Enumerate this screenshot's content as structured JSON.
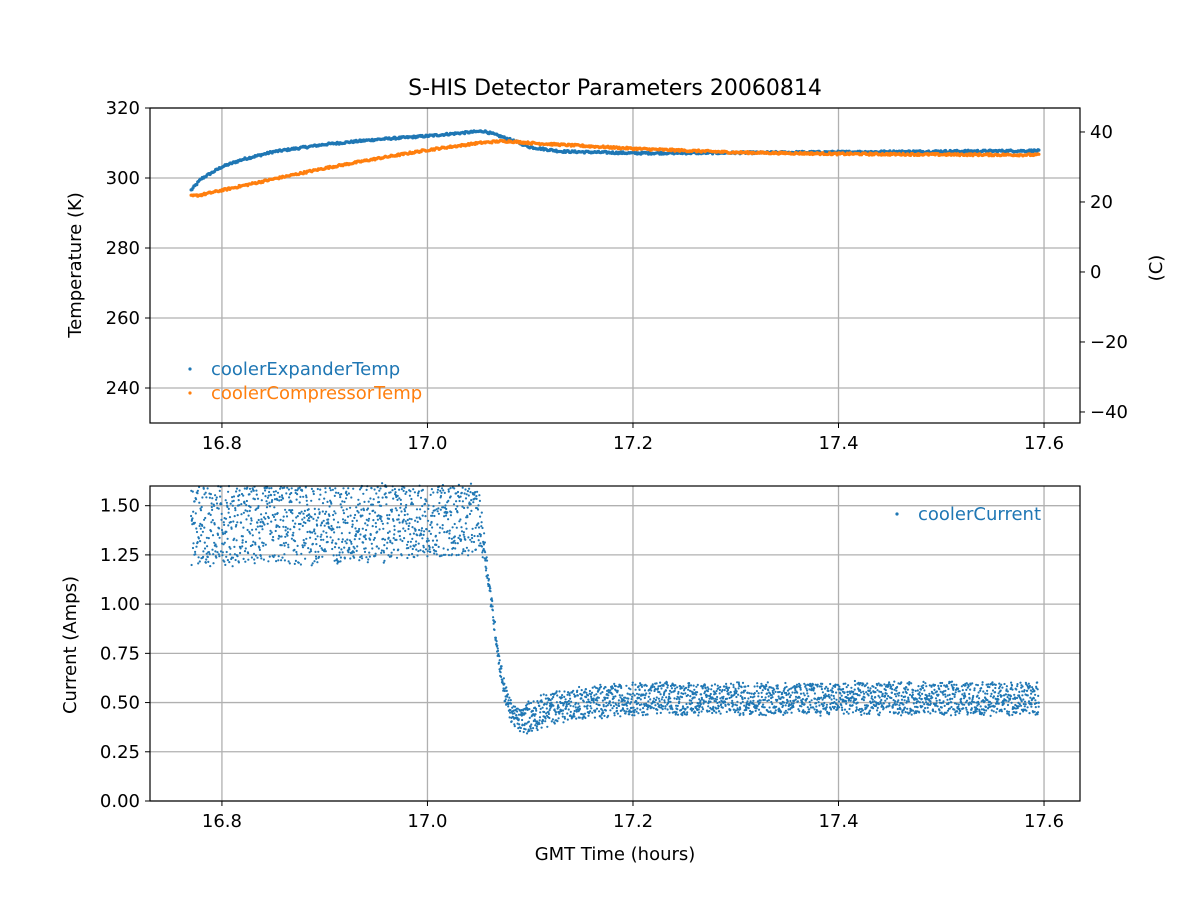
{
  "figure": {
    "title": "S-HIS Detector Parameters 20060814"
  },
  "colors": {
    "blue": "#1f77b4",
    "orange": "#ff7f0e",
    "grid": "#b0b0b0"
  },
  "chart_data": [
    {
      "type": "scatter",
      "title": "S-HIS Detector Parameters 20060814",
      "xlabel": "",
      "ylabel": "Temperature (K)",
      "y2label": "(C)",
      "xlim": [
        16.73,
        17.635
      ],
      "ylim": [
        230,
        320
      ],
      "y2lim": [
        -43.15,
        46.85
      ],
      "xticks": [
        "16.8",
        "17.0",
        "17.2",
        "17.4",
        "17.6"
      ],
      "yticks": [
        "240",
        "260",
        "280",
        "300",
        "320"
      ],
      "y2ticks": [
        "−40",
        "−20",
        "0",
        "20",
        "40"
      ],
      "grid": true,
      "legend_position": "lower-left",
      "series": [
        {
          "name": "coolerExpanderTemp",
          "color": "#1f77b4",
          "x": [
            16.77,
            16.78,
            16.8,
            16.82,
            16.85,
            16.9,
            16.95,
            17.0,
            17.03,
            17.055,
            17.07,
            17.085,
            17.1,
            17.13,
            17.2,
            17.3,
            17.4,
            17.5,
            17.595
          ],
          "y": [
            296.5,
            299.8,
            303.2,
            305.3,
            307.5,
            309.6,
            311.0,
            312.0,
            312.8,
            313.4,
            312.0,
            310.5,
            308.8,
            307.6,
            307.1,
            307.2,
            307.4,
            307.6,
            307.8
          ]
        },
        {
          "name": "coolerCompressorTemp",
          "color": "#ff7f0e",
          "x": [
            16.77,
            16.78,
            16.8,
            16.85,
            16.9,
            16.95,
            17.0,
            17.05,
            17.07,
            17.08,
            17.1,
            17.2,
            17.3,
            17.4,
            17.5,
            17.595
          ],
          "y": [
            294.8,
            295.2,
            296.5,
            299.7,
            302.8,
            305.5,
            308.0,
            310.0,
            310.5,
            310.5,
            310.0,
            308.4,
            307.3,
            306.9,
            306.7,
            306.6
          ]
        }
      ]
    },
    {
      "type": "scatter",
      "title": "",
      "xlabel": "GMT Time (hours)",
      "ylabel": "Current (Amps)",
      "xlim": [
        16.73,
        17.635
      ],
      "ylim": [
        0.0,
        1.6
      ],
      "xticks": [
        "16.8",
        "17.0",
        "17.2",
        "17.4",
        "17.6"
      ],
      "yticks": [
        "0.00",
        "0.25",
        "0.50",
        "0.75",
        "1.00",
        "1.25",
        "1.50"
      ],
      "grid": true,
      "legend_position": "upper-right",
      "series": [
        {
          "name": "coolerCurrent",
          "color": "#1f77b4",
          "x": [
            16.77,
            16.8,
            16.85,
            16.9,
            16.95,
            17.0,
            17.04,
            17.05,
            17.055,
            17.06,
            17.065,
            17.07,
            17.075,
            17.08,
            17.085,
            17.09,
            17.1,
            17.12,
            17.15,
            17.2,
            17.3,
            17.4,
            17.5,
            17.595
          ],
          "y": [
            1.4,
            1.4,
            1.4,
            1.4,
            1.41,
            1.42,
            1.43,
            1.43,
            1.3,
            1.1,
            0.9,
            0.7,
            0.56,
            0.47,
            0.43,
            0.41,
            0.43,
            0.47,
            0.5,
            0.52,
            0.52,
            0.52,
            0.52,
            0.52
          ],
          "spread": [
            0.2,
            0.2,
            0.2,
            0.2,
            0.2,
            0.18,
            0.18,
            0.15,
            0.08,
            0.04,
            0.04,
            0.04,
            0.05,
            0.05,
            0.05,
            0.06,
            0.08,
            0.08,
            0.08,
            0.08,
            0.08,
            0.08,
            0.08,
            0.08
          ]
        }
      ]
    }
  ]
}
